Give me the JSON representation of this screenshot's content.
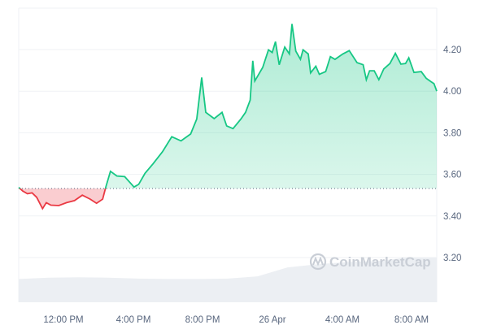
{
  "chart_data": {
    "type": "line",
    "title": "",
    "xlabel": "",
    "ylabel": "",
    "ylim": [
      3.0,
      4.35
    ],
    "y_ticks": [
      "3.20",
      "3.40",
      "3.60",
      "3.80",
      "4.00",
      "4.20"
    ],
    "x_ticks": [
      "12:00 PM",
      "4:00 PM",
      "8:00 PM",
      "26 Apr",
      "4:00 AM",
      "8:00 AM"
    ],
    "grid": true,
    "y_axis_side": "right",
    "reference_price": 3.532,
    "colors": {
      "up": "#16c784",
      "down": "#ea3943",
      "grid": "#eff2f5",
      "volume": "#eceff3"
    },
    "series": [
      {
        "x": [
          "25 Apr 09:25",
          "25 Apr 09:40",
          "25 Apr 09:56",
          "25 Apr 10:12",
          "25 Apr 10:28",
          "25 Apr 10:48",
          "25 Apr 11:01",
          "25 Apr 11:17",
          "25 Apr 11:44",
          "25 Apr 12:11",
          "25 Apr 12:38",
          "25 Apr 13:05",
          "25 Apr 13:32",
          "25 Apr 13:54",
          "25 Apr 14:15",
          "25 Apr 14:26",
          "25 Apr 14:42",
          "25 Apr 15:04",
          "25 Apr 15:31",
          "25 Apr 16:03",
          "25 Apr 16:19",
          "25 Apr 16:41",
          "25 Apr 17:08",
          "25 Apr 17:41",
          "25 Apr 18:13",
          "25 Apr 18:45",
          "25 Apr 19:18",
          "25 Apr 19:39",
          "25 Apr 19:56",
          "25 Apr 20:10",
          "25 Apr 20:39",
          "25 Apr 21:06",
          "25 Apr 21:22",
          "25 Apr 21:44",
          "25 Apr 22:11",
          "25 Apr 22:27",
          "25 Apr 22:43",
          "25 Apr 22:52",
          "25 Apr 22:59",
          "25 Apr 23:26",
          "25 Apr 23:46",
          "25 Apr 23:59",
          "26 Apr 00:10",
          "26 Apr 00:23",
          "26 Apr 00:42",
          "26 Apr 00:58",
          "26 Apr 01:07",
          "26 Apr 01:20",
          "26 Apr 01:36",
          "26 Apr 01:45",
          "26 Apr 02:03",
          "26 Apr 02:11",
          "26 Apr 02:29",
          "26 Apr 02:41",
          "26 Apr 03:03",
          "26 Apr 03:19",
          "26 Apr 03:35",
          "26 Apr 04:02",
          "26 Apr 04:24",
          "26 Apr 04:51",
          "26 Apr 05:12",
          "26 Apr 05:23",
          "26 Apr 05:34",
          "26 Apr 05:50",
          "26 Apr 06:06",
          "26 Apr 06:23",
          "26 Apr 06:44",
          "26 Apr 07:03",
          "26 Apr 07:22",
          "26 Apr 07:38",
          "26 Apr 07:49",
          "26 Apr 08:07",
          "26 Apr 08:32",
          "26 Apr 08:49",
          "26 Apr 09:05",
          "26 Apr 09:16",
          "26 Apr 09:30"
        ],
        "y": [
          3.537,
          3.52,
          3.507,
          3.511,
          3.49,
          3.435,
          3.464,
          3.452,
          3.45,
          3.464,
          3.474,
          3.5,
          3.481,
          3.461,
          3.481,
          3.539,
          3.615,
          3.592,
          3.589,
          3.539,
          3.552,
          3.605,
          3.65,
          3.709,
          3.781,
          3.761,
          3.794,
          3.866,
          4.066,
          3.898,
          3.868,
          3.898,
          3.833,
          3.82,
          3.866,
          3.898,
          3.957,
          4.146,
          4.049,
          4.114,
          4.199,
          4.186,
          4.238,
          4.127,
          4.212,
          4.179,
          4.323,
          4.192,
          4.153,
          4.199,
          4.179,
          4.088,
          4.12,
          4.081,
          4.094,
          4.166,
          4.153,
          4.179,
          4.195,
          4.137,
          4.127,
          4.055,
          4.098,
          4.098,
          4.055,
          4.107,
          4.133,
          4.182,
          4.13,
          4.133,
          4.16,
          4.09,
          4.094,
          4.062,
          4.046,
          4.036,
          4.0
        ]
      }
    ],
    "volume_relative": [
      0.52,
      0.55,
      0.56,
      0.55,
      0.53,
      0.52,
      0.52,
      0.53,
      0.58,
      0.78,
      0.85,
      0.9,
      0.92,
      1.0,
      1.0
    ]
  },
  "watermark": "CoinMarketCap"
}
